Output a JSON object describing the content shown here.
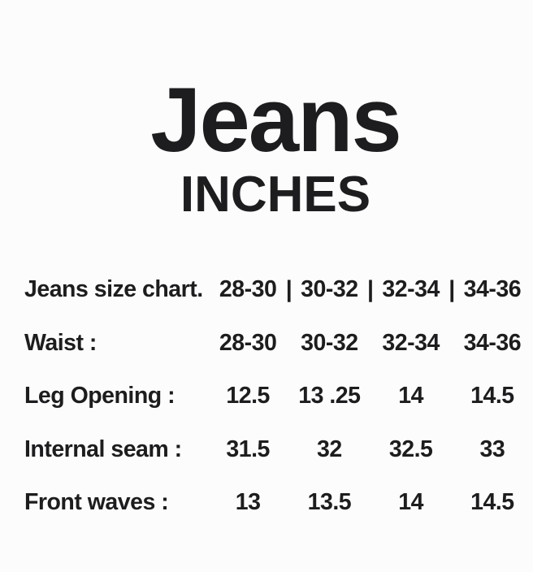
{
  "title": "Jeans",
  "subtitle": "INCHES",
  "colors": {
    "text": "#1d1d1f",
    "background": "#fcfcfc"
  },
  "table": {
    "rows": [
      {
        "label": "Jeans size chart.",
        "separator": "|",
        "values": [
          "28-30",
          "30-32",
          "32-34",
          "34-36"
        ]
      },
      {
        "label": "Waist :",
        "values": [
          "28-30",
          "30-32",
          "32-34",
          "34-36"
        ]
      },
      {
        "label": "Leg Opening :",
        "values": [
          "12.5",
          "13 .25",
          "14",
          "14.5"
        ]
      },
      {
        "label": "Internal seam :",
        "values": [
          "31.5",
          "32",
          "32.5",
          "33"
        ]
      },
      {
        "label": "Front waves :",
        "values": [
          "13",
          "13.5",
          "14",
          "14.5"
        ]
      }
    ]
  }
}
